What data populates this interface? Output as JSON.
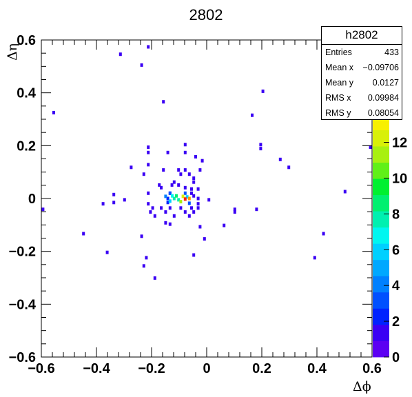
{
  "chart_data": {
    "type": "heatmap",
    "title": "2802",
    "xlabel": "Δϕ",
    "ylabel": "Δη",
    "xlim": [
      -0.6,
      0.6
    ],
    "ylim": [
      -0.6,
      0.6
    ],
    "x_ticks": [
      "−0.6",
      "−0.4",
      "−0.2",
      "0",
      "0.2",
      "0.4",
      "0.6"
    ],
    "y_ticks": [
      "0.6",
      "0.4",
      "0.2",
      "0",
      "−0.2",
      "−0.4",
      "−0.6"
    ],
    "z_range": [
      0,
      13.6
    ],
    "z_ticks": [
      "0",
      "2",
      "4",
      "6",
      "8",
      "10",
      "12"
    ],
    "palette": [
      "#5c00f2",
      "#3a00f4",
      "#0022ff",
      "#0050ff",
      "#0080ff",
      "#00a8ff",
      "#00d0ff",
      "#00f6f0",
      "#00f0b0",
      "#00f070",
      "#00f030",
      "#60f018",
      "#a8f010",
      "#d8f008",
      "#f8f000"
    ],
    "hot_colors": {
      "orange": "#ff9a00",
      "red": "#ff2000"
    },
    "cells": [
      {
        "x": -0.212,
        "y": 0.574,
        "z": 1
      },
      {
        "x": -0.313,
        "y": 0.546,
        "z": 1
      },
      {
        "x": -0.236,
        "y": 0.505,
        "z": 1
      },
      {
        "x": 0.204,
        "y": 0.406,
        "z": 1
      },
      {
        "x": -0.157,
        "y": 0.366,
        "z": 1
      },
      {
        "x": -0.555,
        "y": 0.325,
        "z": 1
      },
      {
        "x": 0.165,
        "y": 0.315,
        "z": 1
      },
      {
        "x": -0.078,
        "y": 0.204,
        "z": 1
      },
      {
        "x": 0.196,
        "y": 0.204,
        "z": 1
      },
      {
        "x": -0.212,
        "y": 0.194,
        "z": 1
      },
      {
        "x": 0.196,
        "y": 0.189,
        "z": 1
      },
      {
        "x": 0.594,
        "y": 0.194,
        "z": 1
      },
      {
        "x": -0.212,
        "y": 0.174,
        "z": 1
      },
      {
        "x": -0.141,
        "y": 0.174,
        "z": 1
      },
      {
        "x": -0.078,
        "y": 0.174,
        "z": 1
      },
      {
        "x": -0.04,
        "y": 0.158,
        "z": 1
      },
      {
        "x": 0.267,
        "y": 0.148,
        "z": 1
      },
      {
        "x": -0.016,
        "y": 0.143,
        "z": 1
      },
      {
        "x": -0.212,
        "y": 0.128,
        "z": 1
      },
      {
        "x": -0.274,
        "y": 0.118,
        "z": 1
      },
      {
        "x": 0.298,
        "y": 0.118,
        "z": 1
      },
      {
        "x": -0.102,
        "y": 0.108,
        "z": 1
      },
      {
        "x": -0.078,
        "y": 0.108,
        "z": 1
      },
      {
        "x": -0.024,
        "y": 0.108,
        "z": 1
      },
      {
        "x": -0.157,
        "y": 0.108,
        "z": 1
      },
      {
        "x": -0.228,
        "y": 0.092,
        "z": 1
      },
      {
        "x": -0.094,
        "y": 0.092,
        "z": 1
      },
      {
        "x": -0.063,
        "y": 0.092,
        "z": 1
      },
      {
        "x": -0.047,
        "y": 0.077,
        "z": 1
      },
      {
        "x": -0.118,
        "y": 0.062,
        "z": 1
      },
      {
        "x": -0.047,
        "y": 0.062,
        "z": 1
      },
      {
        "x": -0.172,
        "y": 0.051,
        "z": 1
      },
      {
        "x": -0.126,
        "y": 0.051,
        "z": 1
      },
      {
        "x": -0.102,
        "y": 0.051,
        "z": 1
      },
      {
        "x": -0.078,
        "y": 0.041,
        "z": 1
      },
      {
        "x": -0.165,
        "y": 0.041,
        "z": 1
      },
      {
        "x": -0.055,
        "y": 0.036,
        "z": 1
      },
      {
        "x": -0.031,
        "y": 0.036,
        "z": 1
      },
      {
        "x": 0.502,
        "y": 0.026,
        "z": 1
      },
      {
        "x": -0.212,
        "y": 0.02,
        "z": 1
      },
      {
        "x": -0.133,
        "y": 0.02,
        "z": 1
      },
      {
        "x": -0.055,
        "y": 0.02,
        "z": 1
      },
      {
        "x": -0.337,
        "y": 0.015,
        "z": 1
      },
      {
        "x": -0.047,
        "y": 0.01,
        "z": 1
      },
      {
        "x": -0.031,
        "y": 0.0,
        "z": 1
      },
      {
        "x": -0.298,
        "y": -0.005,
        "z": 1
      },
      {
        "x": 0.008,
        "y": -0.005,
        "z": 1
      },
      {
        "x": -0.376,
        "y": -0.02,
        "z": 1
      },
      {
        "x": -0.337,
        "y": -0.015,
        "z": 1
      },
      {
        "x": -0.212,
        "y": -0.02,
        "z": 1
      },
      {
        "x": -0.031,
        "y": -0.02,
        "z": 1
      },
      {
        "x": -0.196,
        "y": -0.036,
        "z": 1
      },
      {
        "x": -0.165,
        "y": -0.036,
        "z": 1
      },
      {
        "x": -0.133,
        "y": -0.036,
        "z": 1
      },
      {
        "x": -0.094,
        "y": -0.036,
        "z": 1
      },
      {
        "x": -0.055,
        "y": -0.036,
        "z": 1
      },
      {
        "x": -0.031,
        "y": -0.036,
        "z": 1
      },
      {
        "x": -0.594,
        "y": -0.041,
        "z": 1
      },
      {
        "x": 0.102,
        "y": -0.041,
        "z": 1
      },
      {
        "x": 0.181,
        "y": -0.041,
        "z": 1
      },
      {
        "x": -0.204,
        "y": -0.051,
        "z": 1
      },
      {
        "x": -0.149,
        "y": -0.051,
        "z": 1
      },
      {
        "x": -0.078,
        "y": -0.051,
        "z": 1
      },
      {
        "x": -0.047,
        "y": -0.051,
        "z": 1
      },
      {
        "x": 0.102,
        "y": -0.051,
        "z": 1
      },
      {
        "x": -0.188,
        "y": -0.066,
        "z": 1
      },
      {
        "x": -0.118,
        "y": -0.066,
        "z": 1
      },
      {
        "x": -0.063,
        "y": -0.066,
        "z": 1
      },
      {
        "x": -0.149,
        "y": -0.092,
        "z": 1
      },
      {
        "x": -0.133,
        "y": -0.097,
        "z": 1
      },
      {
        "x": -0.024,
        "y": -0.107,
        "z": 1
      },
      {
        "x": 0.063,
        "y": -0.102,
        "z": 1
      },
      {
        "x": -0.447,
        "y": -0.133,
        "z": 1
      },
      {
        "x": 0.424,
        "y": -0.133,
        "z": 1
      },
      {
        "x": -0.236,
        "y": -0.143,
        "z": 1
      },
      {
        "x": -0.008,
        "y": -0.153,
        "z": 1
      },
      {
        "x": -0.361,
        "y": -0.204,
        "z": 1
      },
      {
        "x": -0.047,
        "y": -0.214,
        "z": 1
      },
      {
        "x": -0.219,
        "y": -0.224,
        "z": 1
      },
      {
        "x": 0.392,
        "y": -0.224,
        "z": 1
      },
      {
        "x": -0.228,
        "y": -0.255,
        "z": 1
      },
      {
        "x": -0.188,
        "y": -0.301,
        "z": 1
      },
      {
        "x": -0.141,
        "y": 0.0,
        "z": 2
      },
      {
        "x": -0.141,
        "y": -0.015,
        "z": 2
      },
      {
        "x": -0.133,
        "y": 0.02,
        "z": 3
      },
      {
        "x": -0.078,
        "y": 0.02,
        "z": 3
      },
      {
        "x": -0.149,
        "y": 0.008,
        "z": 4
      },
      {
        "x": -0.063,
        "y": -0.018,
        "z": 3
      },
      {
        "x": -0.133,
        "y": -0.01,
        "z": 6
      },
      {
        "x": -0.125,
        "y": 0.01,
        "z": 7
      },
      {
        "x": -0.118,
        "y": 0.0,
        "z": 8
      },
      {
        "x": -0.11,
        "y": 0.01,
        "z": 9
      },
      {
        "x": -0.102,
        "y": -0.005,
        "z": 8
      },
      {
        "x": -0.094,
        "y": -0.012,
        "z": 11
      },
      {
        "x": -0.086,
        "y": 0.008,
        "z": 12
      },
      {
        "x": -0.071,
        "y": 0.006,
        "z": 6
      },
      {
        "x": -0.063,
        "y": 0.0,
        "z": 14
      },
      {
        "x": -0.078,
        "y": -0.002,
        "z": 16
      }
    ]
  },
  "stats": {
    "title": "h2802",
    "rows": [
      {
        "label": "Entries",
        "value": "433"
      },
      {
        "label": "Mean x",
        "value": "−0.09706"
      },
      {
        "label": "Mean y",
        "value": "0.0127"
      },
      {
        "label": "RMS x",
        "value": "0.09984"
      },
      {
        "label": "RMS y",
        "value": "0.08054"
      }
    ]
  }
}
